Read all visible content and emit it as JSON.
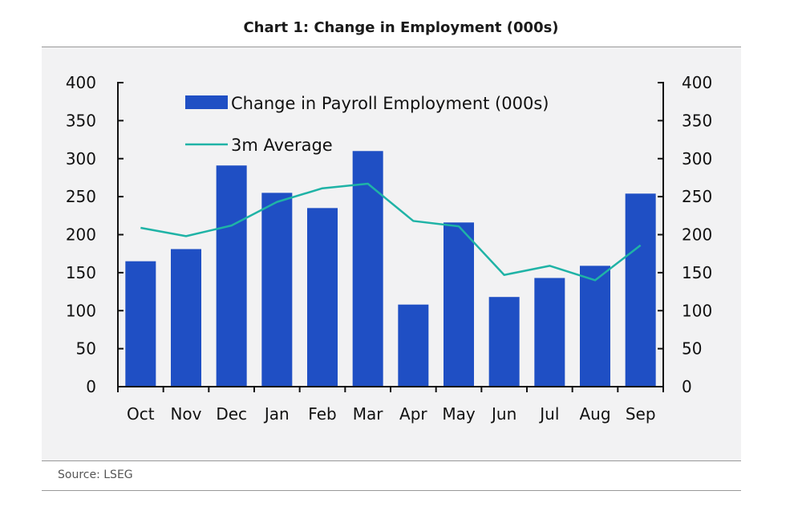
{
  "title": "Chart 1: Change in Employment (000s)",
  "source": "Source: LSEG",
  "colors": {
    "bar": "#1f4fc4",
    "line": "#1fb3a6",
    "axis": "#111111",
    "panel": "#f2f2f3"
  },
  "chart_data": {
    "type": "bar",
    "title": "Chart 1: Change in Employment (000s)",
    "categories": [
      "Oct",
      "Nov",
      "Dec",
      "Jan",
      "Feb",
      "Mar",
      "Apr",
      "May",
      "Jun",
      "Jul",
      "Aug",
      "Sep"
    ],
    "series": [
      {
        "name": "Change in Payroll Employment (000s)",
        "type": "bar",
        "values": [
          165,
          181,
          291,
          255,
          235,
          310,
          108,
          216,
          118,
          143,
          159,
          254
        ]
      },
      {
        "name": "3m Average",
        "type": "line",
        "values": [
          209,
          198,
          212,
          243,
          261,
          267,
          218,
          211,
          147,
          159,
          140,
          186
        ]
      }
    ],
    "ylim": [
      0,
      400
    ],
    "yticks": [
      0,
      50,
      100,
      150,
      200,
      250,
      300,
      350,
      400
    ],
    "secondary_ylim": [
      0,
      400
    ],
    "grid": false,
    "legend_position": "top-left"
  }
}
